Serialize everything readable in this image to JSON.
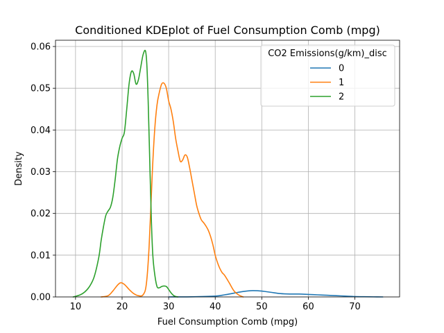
{
  "chart_data": {
    "type": "line",
    "title": "Conditioned KDEplot of Fuel Consumption Comb (mpg)",
    "xlabel": "Fuel Consumption Comb (mpg)",
    "ylabel": "Density",
    "xlim": [
      5.7,
      79.6
    ],
    "ylim": [
      0,
      0.0615
    ],
    "xticks": [
      10,
      20,
      30,
      40,
      50,
      60,
      70
    ],
    "yticks": [
      0.0,
      0.01,
      0.02,
      0.03,
      0.04,
      0.05,
      0.06
    ],
    "ytick_labels": [
      "0.00",
      "0.01",
      "0.02",
      "0.03",
      "0.04",
      "0.05",
      "0.06"
    ],
    "grid": true,
    "legend": {
      "title": "CO2 Emissions(g/km)_disc",
      "placement": "top-right"
    },
    "series": [
      {
        "name": "0",
        "color": "#1f77b4",
        "x": [
          30,
          35,
          40,
          42,
          44,
          46,
          48,
          50,
          52,
          54,
          56,
          58,
          60,
          62,
          64,
          66,
          68,
          70,
          72,
          74,
          76
        ],
        "y": [
          0,
          3e-05,
          0.0002,
          0.0005,
          0.0009,
          0.0013,
          0.0015,
          0.0014,
          0.0011,
          0.0008,
          0.0007,
          0.0007,
          0.0006,
          0.0005,
          0.0004,
          0.0003,
          0.0002,
          0.0001,
          5e-05,
          2e-05,
          0
        ]
      },
      {
        "name": "1",
        "color": "#ff7f0e",
        "x": [
          15.5,
          17,
          18,
          19,
          19.7,
          20.5,
          21.5,
          22.5,
          23.5,
          24.5,
          25.2,
          25.8,
          26.5,
          27,
          27.5,
          28,
          28.5,
          29,
          29.5,
          30,
          30.5,
          31,
          31.5,
          32,
          32.5,
          33,
          33.5,
          34,
          34.5,
          35,
          35.5,
          36,
          36.5,
          37,
          37.5,
          38,
          38.5,
          39,
          39.5,
          40,
          40.5,
          41,
          41.5,
          42,
          43,
          44,
          45,
          46
        ],
        "y": [
          0,
          0.0003,
          0.0014,
          0.0028,
          0.0034,
          0.003,
          0.0018,
          0.0008,
          0.0003,
          0.0005,
          0.003,
          0.012,
          0.03,
          0.04,
          0.046,
          0.049,
          0.051,
          0.0512,
          0.05,
          0.047,
          0.045,
          0.042,
          0.038,
          0.035,
          0.0325,
          0.0328,
          0.034,
          0.0335,
          0.031,
          0.028,
          0.025,
          0.022,
          0.02,
          0.0185,
          0.0178,
          0.017,
          0.016,
          0.0145,
          0.0125,
          0.01,
          0.0082,
          0.0068,
          0.0058,
          0.0052,
          0.0034,
          0.0015,
          0.0005,
          0
        ]
      },
      {
        "name": "2",
        "color": "#2ca02c",
        "x": [
          9.5,
          11,
          12,
          13,
          14,
          15,
          15.5,
          16,
          16.5,
          17,
          17.5,
          18,
          18.5,
          19,
          19.5,
          20,
          20.5,
          21,
          21.5,
          22,
          22.5,
          23,
          23.5,
          24,
          24.5,
          25,
          25.3,
          25.6,
          26,
          26.3,
          26.6,
          27,
          27.5,
          28,
          28.5,
          29,
          29.5,
          30,
          30.5,
          31,
          31.5,
          32
        ],
        "y": [
          0,
          0.0005,
          0.0012,
          0.0025,
          0.0048,
          0.0095,
          0.0135,
          0.0168,
          0.0195,
          0.0206,
          0.0215,
          0.0238,
          0.028,
          0.033,
          0.036,
          0.038,
          0.0395,
          0.045,
          0.051,
          0.054,
          0.0535,
          0.051,
          0.052,
          0.055,
          0.058,
          0.059,
          0.056,
          0.047,
          0.03,
          0.018,
          0.01,
          0.0055,
          0.0025,
          0.0022,
          0.0025,
          0.0026,
          0.0025,
          0.0018,
          0.001,
          0.0004,
          0.0001,
          0
        ]
      }
    ]
  }
}
